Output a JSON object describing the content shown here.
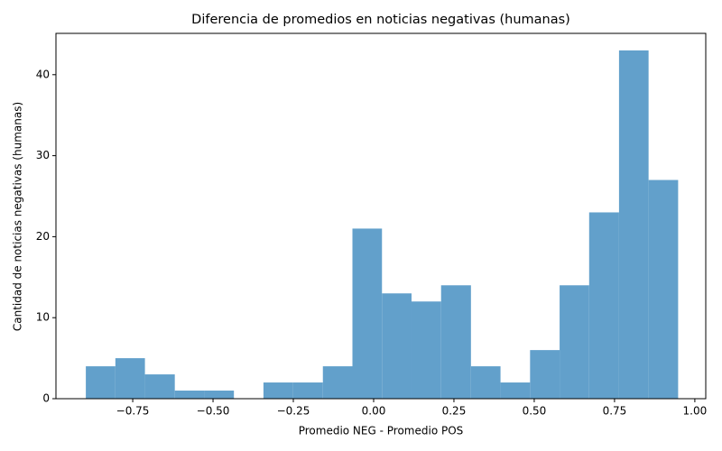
{
  "chart_data": {
    "type": "histogram",
    "title": "Diferencia de promedios en noticias negativas (humanas)",
    "x_label": "Promedio NEG - Promedio POS",
    "y_label": "Cantidad de noticias negativas (humanas)",
    "bins": [
      -0.896,
      -0.804,
      -0.712,
      -0.619,
      -0.527,
      -0.435,
      -0.343,
      -0.251,
      -0.158,
      -0.066,
      0.026,
      0.118,
      0.21,
      0.303,
      0.395,
      0.487,
      0.579,
      0.671,
      0.764,
      0.856,
      0.948
    ],
    "values": [
      4,
      5,
      3,
      1,
      1,
      0,
      2,
      2,
      4,
      21,
      13,
      12,
      14,
      4,
      2,
      6,
      14,
      23,
      43,
      27
    ],
    "color": "#62a0cb",
    "xlim": [
      -0.989,
      1.034
    ],
    "ylim": [
      0,
      45.1
    ],
    "xticks": [
      {
        "value": -0.75,
        "label": "−0.75"
      },
      {
        "value": -0.5,
        "label": "−0.50"
      },
      {
        "value": -0.25,
        "label": "−0.25"
      },
      {
        "value": 0,
        "label": "0.00"
      },
      {
        "value": 0.25,
        "label": "0.25"
      },
      {
        "value": 0.5,
        "label": "0.50"
      },
      {
        "value": 0.75,
        "label": "0.75"
      },
      {
        "value": 1,
        "label": "1.00"
      }
    ],
    "yticks": [
      0,
      10,
      20,
      30,
      40
    ]
  }
}
